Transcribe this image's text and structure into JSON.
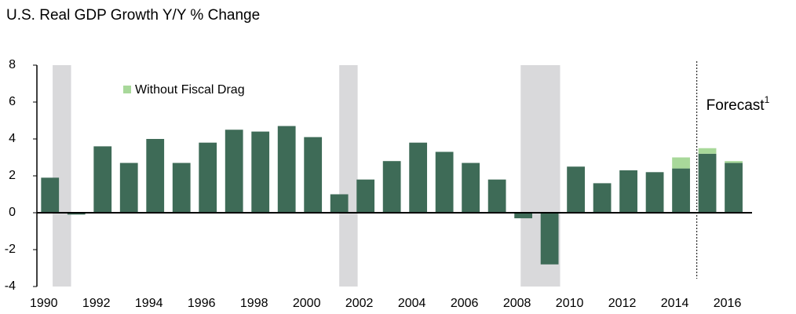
{
  "chart_data": {
    "type": "bar",
    "title": "U.S. Real GDP Growth Y/Y % Change",
    "x": [
      1990,
      1991,
      1992,
      1993,
      1994,
      1995,
      1996,
      1997,
      1998,
      1999,
      2000,
      2001,
      2002,
      2003,
      2004,
      2005,
      2006,
      2007,
      2008,
      2009,
      2010,
      2011,
      2012,
      2013,
      2014,
      2015,
      2016
    ],
    "series": [
      {
        "color": "#3e6b57",
        "values": [
          1.9,
          -0.1,
          3.6,
          2.7,
          4.0,
          2.7,
          3.8,
          4.5,
          4.4,
          4.7,
          4.1,
          1.0,
          1.8,
          2.8,
          3.8,
          3.3,
          2.7,
          1.8,
          -0.3,
          -2.8,
          2.5,
          1.6,
          2.3,
          2.2,
          2.4,
          3.2,
          2.7
        ]
      },
      {
        "name": "Without Fiscal Drag",
        "color": "#a8d89a",
        "stacked": true,
        "values": [
          null,
          null,
          null,
          null,
          null,
          null,
          null,
          null,
          null,
          null,
          null,
          null,
          null,
          null,
          null,
          null,
          null,
          null,
          null,
          null,
          null,
          null,
          null,
          null,
          0.6,
          0.3,
          0.1
        ]
      }
    ],
    "xlim": [
      1989.5,
      2016.7
    ],
    "xticks": [
      1990,
      1992,
      1994,
      1996,
      1998,
      2000,
      2002,
      2004,
      2006,
      2008,
      2010,
      2012,
      2014,
      2016
    ],
    "ylim": [
      -4,
      8
    ],
    "yticks": [
      -4,
      -2,
      0,
      2,
      4,
      6,
      8
    ],
    "shaded_periods": [
      [
        1990.1,
        1990.8
      ],
      [
        2001.0,
        2001.7
      ],
      [
        2007.9,
        2009.4
      ]
    ],
    "shade_color": "#d9d9db",
    "forecast_x": 2014.6,
    "forecast_label": "Forecast",
    "forecast_footnote": "1",
    "legend": "top-left"
  }
}
